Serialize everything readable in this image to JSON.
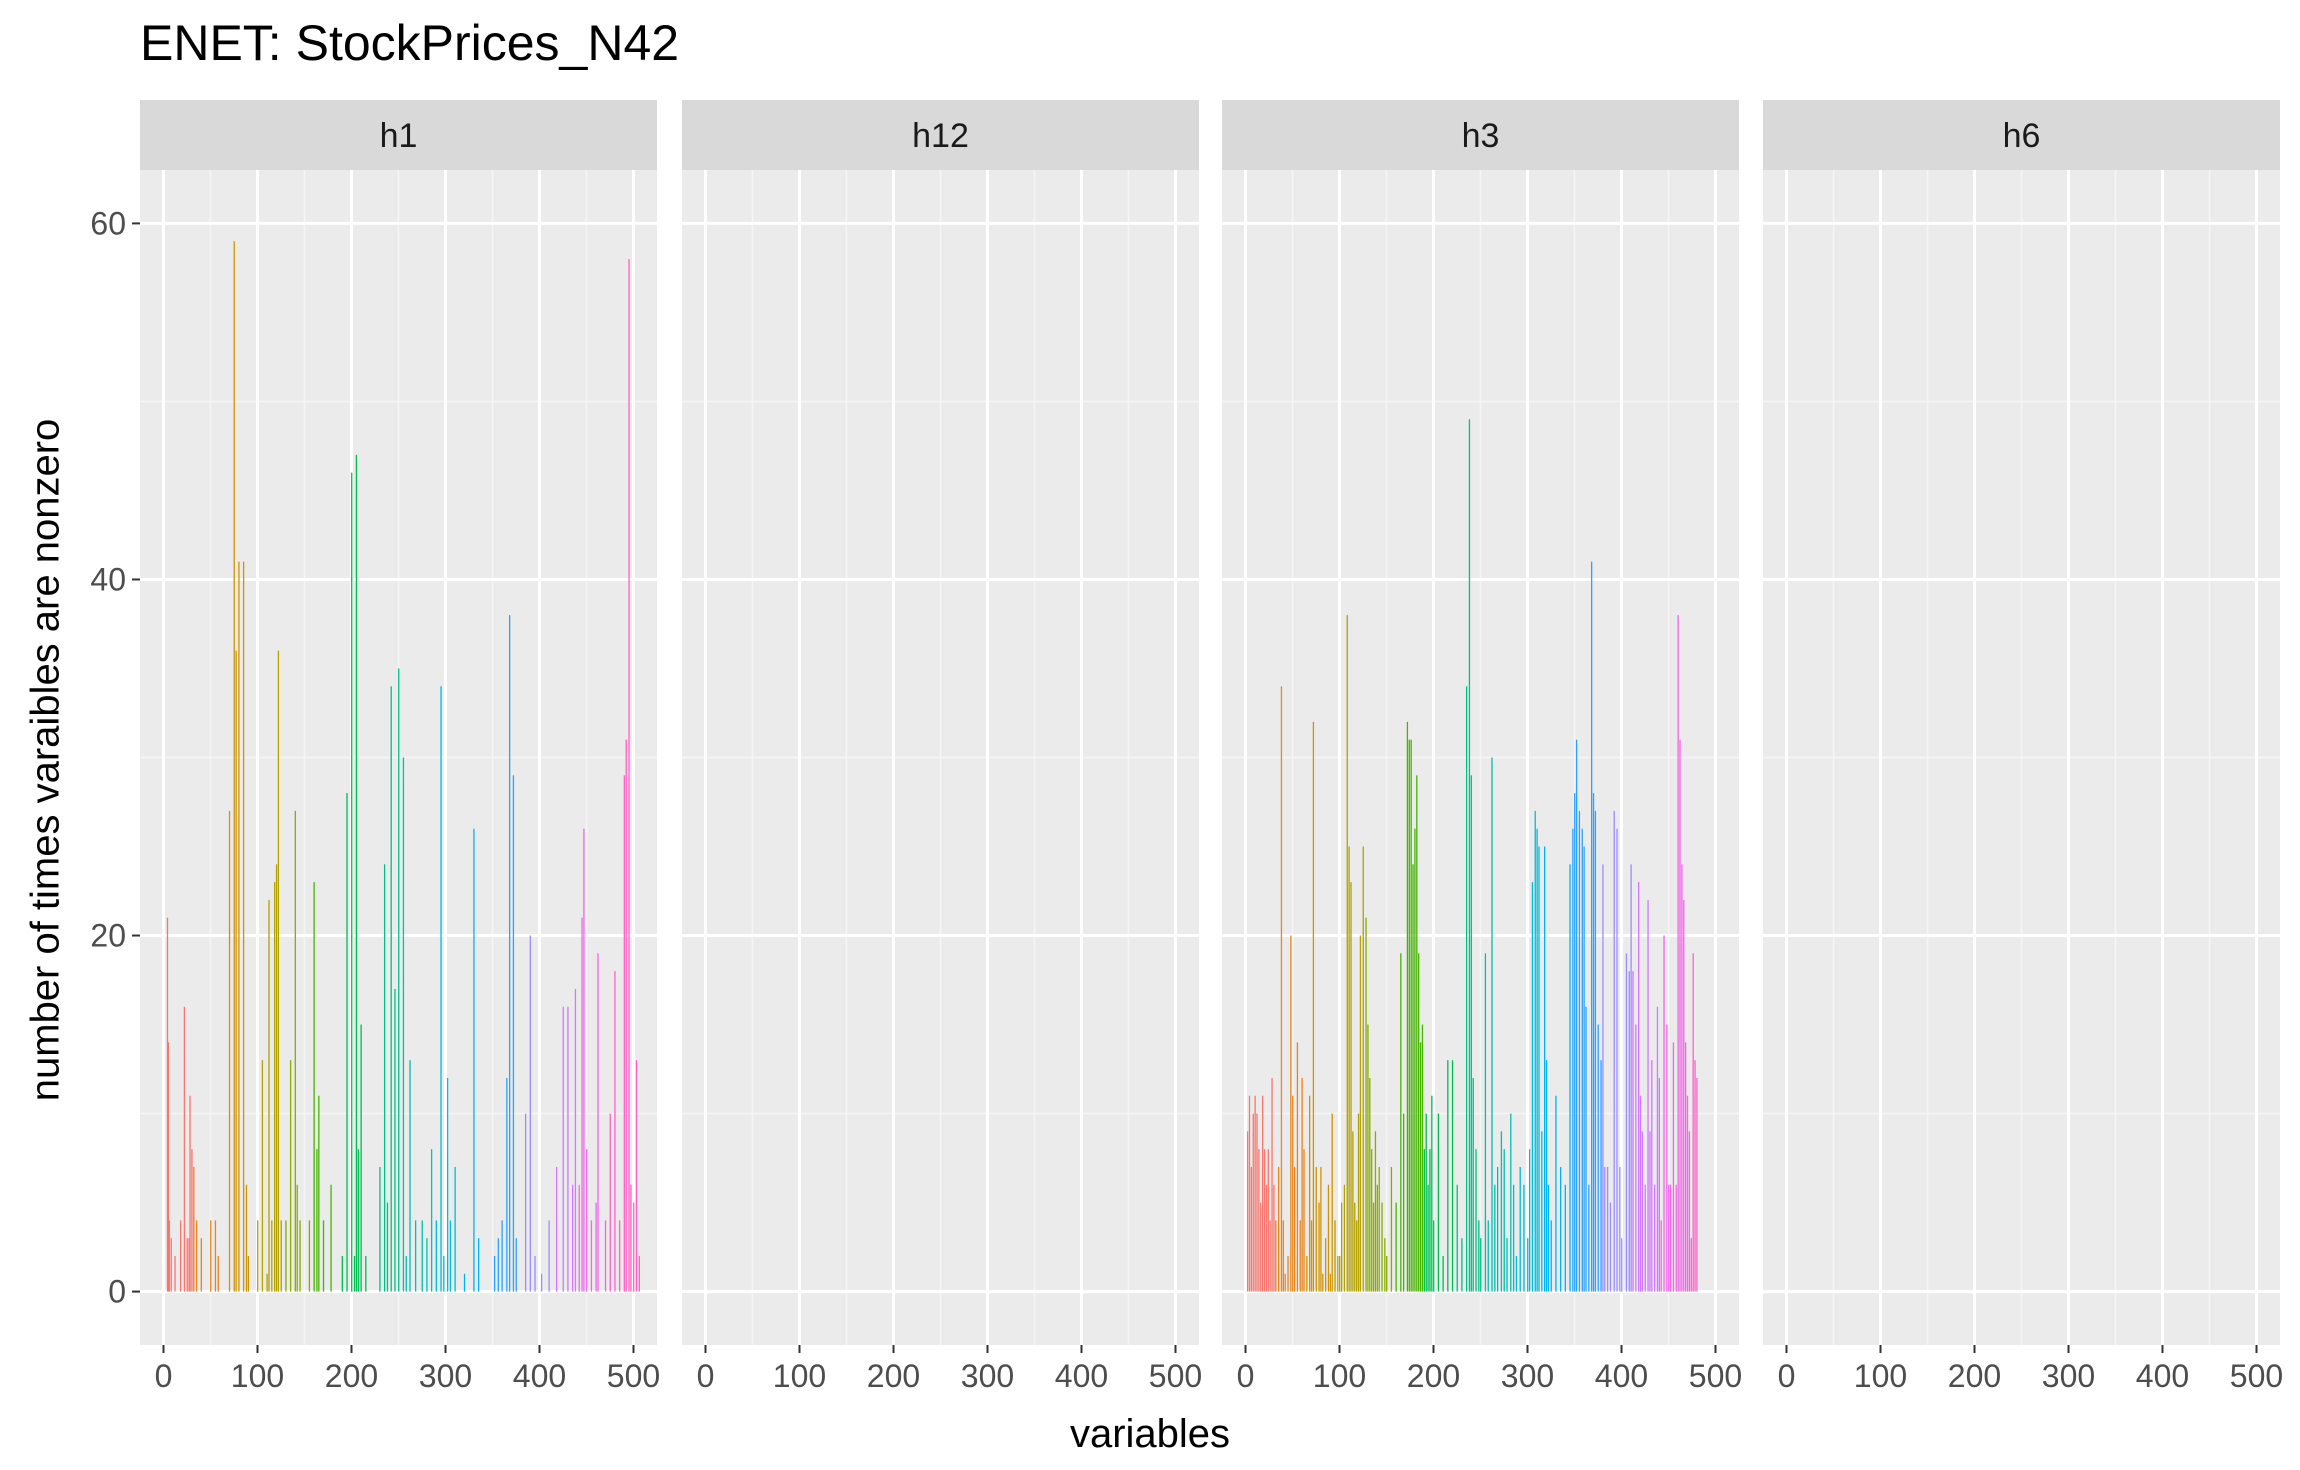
{
  "chart_data": {
    "type": "bar",
    "title": "ENET: StockPrices_N42",
    "xlabel": "variables",
    "ylabel": "number of times varaibles are nonzero",
    "xlim": [
      -25,
      525
    ],
    "ylim": [
      -3,
      63
    ],
    "x_ticks": [
      "0",
      "100",
      "200",
      "300",
      "400",
      "500"
    ],
    "y_ticks": [
      "0",
      "20",
      "40",
      "60"
    ],
    "grid": true,
    "legend": "none",
    "panels": [
      {
        "name": "h1",
        "bars": [
          [
            4,
            21
          ],
          [
            5,
            14
          ],
          [
            6,
            4
          ],
          [
            8,
            3
          ],
          [
            12,
            2
          ],
          [
            18,
            4
          ],
          [
            22,
            16
          ],
          [
            25,
            3
          ],
          [
            27,
            3
          ],
          [
            28,
            11
          ],
          [
            30,
            8
          ],
          [
            32,
            7
          ],
          [
            35,
            4
          ],
          [
            40,
            3
          ],
          [
            50,
            4
          ],
          [
            55,
            4
          ],
          [
            58,
            2
          ],
          [
            70,
            27
          ],
          [
            75,
            59
          ],
          [
            77,
            36
          ],
          [
            80,
            41
          ],
          [
            85,
            41
          ],
          [
            88,
            6
          ],
          [
            90,
            2
          ],
          [
            100,
            4
          ],
          [
            105,
            13
          ],
          [
            110,
            1
          ],
          [
            112,
            22
          ],
          [
            115,
            4
          ],
          [
            118,
            23
          ],
          [
            120,
            24
          ],
          [
            122,
            36
          ],
          [
            125,
            4
          ],
          [
            130,
            4
          ],
          [
            135,
            13
          ],
          [
            140,
            27
          ],
          [
            142,
            6
          ],
          [
            145,
            4
          ],
          [
            155,
            4
          ],
          [
            160,
            23
          ],
          [
            163,
            8
          ],
          [
            165,
            11
          ],
          [
            170,
            4
          ],
          [
            178,
            6
          ],
          [
            190,
            2
          ],
          [
            195,
            28
          ],
          [
            200,
            46
          ],
          [
            203,
            2
          ],
          [
            205,
            47
          ],
          [
            207,
            8
          ],
          [
            210,
            15
          ],
          [
            215,
            2
          ],
          [
            230,
            7
          ],
          [
            235,
            24
          ],
          [
            238,
            5
          ],
          [
            242,
            34
          ],
          [
            246,
            17
          ],
          [
            250,
            35
          ],
          [
            255,
            30
          ],
          [
            258,
            2
          ],
          [
            262,
            13
          ],
          [
            268,
            4
          ],
          [
            275,
            4
          ],
          [
            280,
            3
          ],
          [
            285,
            8
          ],
          [
            290,
            4
          ],
          [
            295,
            34
          ],
          [
            298,
            2
          ],
          [
            302,
            12
          ],
          [
            305,
            4
          ],
          [
            310,
            7
          ],
          [
            320,
            1
          ],
          [
            330,
            26
          ],
          [
            335,
            3
          ],
          [
            352,
            2
          ],
          [
            356,
            3
          ],
          [
            360,
            4
          ],
          [
            365,
            12
          ],
          [
            368,
            38
          ],
          [
            372,
            29
          ],
          [
            375,
            3
          ],
          [
            385,
            10
          ],
          [
            390,
            20
          ],
          [
            395,
            2
          ],
          [
            402,
            1
          ],
          [
            410,
            4
          ],
          [
            418,
            7
          ],
          [
            425,
            16
          ],
          [
            430,
            16
          ],
          [
            435,
            6
          ],
          [
            438,
            17
          ],
          [
            442,
            6
          ],
          [
            445,
            21
          ],
          [
            447,
            26
          ],
          [
            450,
            8
          ],
          [
            455,
            4
          ],
          [
            460,
            5
          ],
          [
            462,
            19
          ],
          [
            470,
            4
          ],
          [
            475,
            10
          ],
          [
            480,
            18
          ],
          [
            485,
            4
          ],
          [
            490,
            29
          ],
          [
            492,
            31
          ],
          [
            495,
            58
          ],
          [
            497,
            6
          ],
          [
            500,
            5
          ],
          [
            503,
            13
          ],
          [
            506,
            2
          ]
        ]
      },
      {
        "name": "h12",
        "bars": []
      },
      {
        "name": "h3",
        "bars": [
          [
            2,
            9
          ],
          [
            4,
            11
          ],
          [
            6,
            7
          ],
          [
            8,
            10
          ],
          [
            10,
            11
          ],
          [
            12,
            10
          ],
          [
            14,
            8
          ],
          [
            16,
            5
          ],
          [
            18,
            11
          ],
          [
            20,
            8
          ],
          [
            22,
            6
          ],
          [
            24,
            8
          ],
          [
            26,
            4
          ],
          [
            28,
            12
          ],
          [
            30,
            6
          ],
          [
            32,
            4
          ],
          [
            35,
            7
          ],
          [
            38,
            34
          ],
          [
            40,
            4
          ],
          [
            42,
            1
          ],
          [
            45,
            2
          ],
          [
            48,
            20
          ],
          [
            50,
            11
          ],
          [
            52,
            7
          ],
          [
            55,
            14
          ],
          [
            58,
            4
          ],
          [
            60,
            12
          ],
          [
            62,
            8
          ],
          [
            65,
            2
          ],
          [
            68,
            11
          ],
          [
            70,
            4
          ],
          [
            72,
            32
          ],
          [
            75,
            7
          ],
          [
            78,
            5
          ],
          [
            80,
            7
          ],
          [
            82,
            1
          ],
          [
            85,
            3
          ],
          [
            88,
            6
          ],
          [
            90,
            1
          ],
          [
            92,
            10
          ],
          [
            95,
            4
          ],
          [
            98,
            2
          ],
          [
            100,
            2
          ],
          [
            102,
            5
          ],
          [
            105,
            6
          ],
          [
            108,
            38
          ],
          [
            110,
            25
          ],
          [
            112,
            23
          ],
          [
            114,
            9
          ],
          [
            116,
            5
          ],
          [
            118,
            4
          ],
          [
            120,
            10
          ],
          [
            122,
            20
          ],
          [
            125,
            25
          ],
          [
            128,
            21
          ],
          [
            130,
            15
          ],
          [
            132,
            12
          ],
          [
            134,
            8
          ],
          [
            136,
            5
          ],
          [
            138,
            9
          ],
          [
            140,
            6
          ],
          [
            142,
            7
          ],
          [
            145,
            5
          ],
          [
            148,
            3
          ],
          [
            150,
            2
          ],
          [
            155,
            7
          ],
          [
            160,
            5
          ],
          [
            165,
            19
          ],
          [
            168,
            10
          ],
          [
            172,
            32
          ],
          [
            174,
            31
          ],
          [
            176,
            31
          ],
          [
            178,
            24
          ],
          [
            180,
            26
          ],
          [
            182,
            29
          ],
          [
            184,
            19
          ],
          [
            186,
            14
          ],
          [
            188,
            15
          ],
          [
            190,
            8
          ],
          [
            192,
            10
          ],
          [
            194,
            6
          ],
          [
            196,
            8
          ],
          [
            198,
            11
          ],
          [
            200,
            4
          ],
          [
            205,
            10
          ],
          [
            210,
            2
          ],
          [
            215,
            13
          ],
          [
            220,
            13
          ],
          [
            225,
            6
          ],
          [
            230,
            3
          ],
          [
            235,
            34
          ],
          [
            238,
            49
          ],
          [
            240,
            29
          ],
          [
            242,
            12
          ],
          [
            245,
            8
          ],
          [
            248,
            4
          ],
          [
            250,
            3
          ],
          [
            255,
            19
          ],
          [
            258,
            4
          ],
          [
            262,
            30
          ],
          [
            265,
            6
          ],
          [
            268,
            7
          ],
          [
            272,
            9
          ],
          [
            275,
            8
          ],
          [
            278,
            3
          ],
          [
            282,
            10
          ],
          [
            285,
            6
          ],
          [
            288,
            2
          ],
          [
            292,
            7
          ],
          [
            296,
            6
          ],
          [
            300,
            3
          ],
          [
            302,
            8
          ],
          [
            305,
            23
          ],
          [
            308,
            27
          ],
          [
            310,
            26
          ],
          [
            312,
            25
          ],
          [
            315,
            9
          ],
          [
            318,
            25
          ],
          [
            320,
            13
          ],
          [
            322,
            6
          ],
          [
            325,
            4
          ],
          [
            330,
            11
          ],
          [
            335,
            7
          ],
          [
            340,
            6
          ],
          [
            345,
            24
          ],
          [
            348,
            26
          ],
          [
            350,
            28
          ],
          [
            352,
            31
          ],
          [
            355,
            27
          ],
          [
            358,
            26
          ],
          [
            360,
            25
          ],
          [
            362,
            16
          ],
          [
            365,
            6
          ],
          [
            368,
            41
          ],
          [
            370,
            28
          ],
          [
            372,
            27
          ],
          [
            375,
            15
          ],
          [
            378,
            13
          ],
          [
            380,
            24
          ],
          [
            382,
            7
          ],
          [
            385,
            7
          ],
          [
            388,
            5
          ],
          [
            392,
            27
          ],
          [
            395,
            26
          ],
          [
            398,
            7
          ],
          [
            400,
            3
          ],
          [
            405,
            19
          ],
          [
            408,
            18
          ],
          [
            410,
            24
          ],
          [
            412,
            18
          ],
          [
            415,
            15
          ],
          [
            418,
            23
          ],
          [
            420,
            11
          ],
          [
            422,
            9
          ],
          [
            425,
            6
          ],
          [
            428,
            22
          ],
          [
            430,
            9
          ],
          [
            432,
            13
          ],
          [
            435,
            6
          ],
          [
            438,
            16
          ],
          [
            440,
            12
          ],
          [
            442,
            4
          ],
          [
            445,
            20
          ],
          [
            448,
            15
          ],
          [
            450,
            6
          ],
          [
            452,
            6
          ],
          [
            455,
            14
          ],
          [
            458,
            6
          ],
          [
            460,
            38
          ],
          [
            462,
            31
          ],
          [
            464,
            24
          ],
          [
            466,
            22
          ],
          [
            468,
            14
          ],
          [
            470,
            11
          ],
          [
            472,
            9
          ],
          [
            474,
            3
          ],
          [
            476,
            19
          ],
          [
            478,
            13
          ],
          [
            480,
            12
          ]
        ]
      },
      {
        "name": "h6",
        "bars": []
      }
    ]
  }
}
